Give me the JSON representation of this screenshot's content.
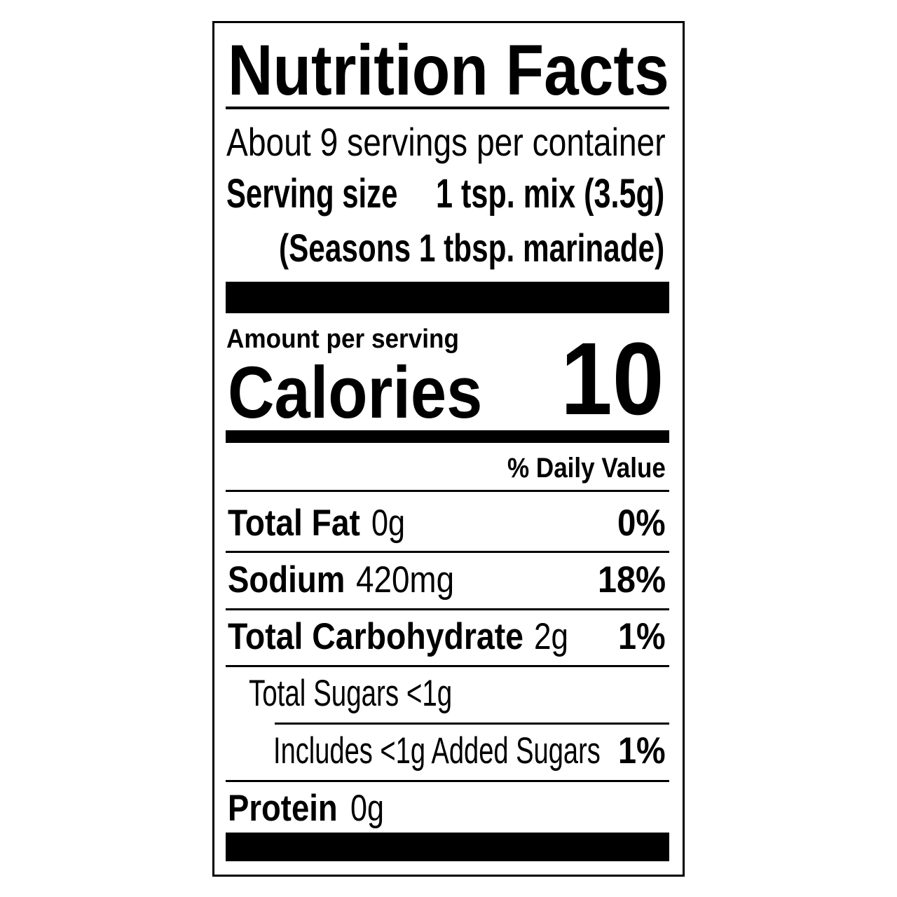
{
  "title": "Nutrition Facts",
  "servings_per_container": "About 9 servings per container",
  "serving_size": {
    "label": "Serving size",
    "value": "1 tsp. mix (3.5g)",
    "note": "(Seasons 1 tbsp. marinade)"
  },
  "calories": {
    "amount_label": "Amount per serving",
    "label": "Calories",
    "value": "10"
  },
  "daily_value_header": "% Daily Value",
  "nutrients": [
    {
      "label": "Total Fat",
      "amount": "0g",
      "dv": "0%"
    },
    {
      "label": "Sodium",
      "amount": "420mg",
      "dv": "18%"
    },
    {
      "label": "Total Carbohydrate",
      "amount": "2g",
      "dv": "1%"
    },
    {
      "label": "Total Sugars <1g"
    },
    {
      "label": "Includes <1g Added Sugars",
      "dv": "1%"
    },
    {
      "label": "Protein",
      "amount": "0g"
    }
  ]
}
